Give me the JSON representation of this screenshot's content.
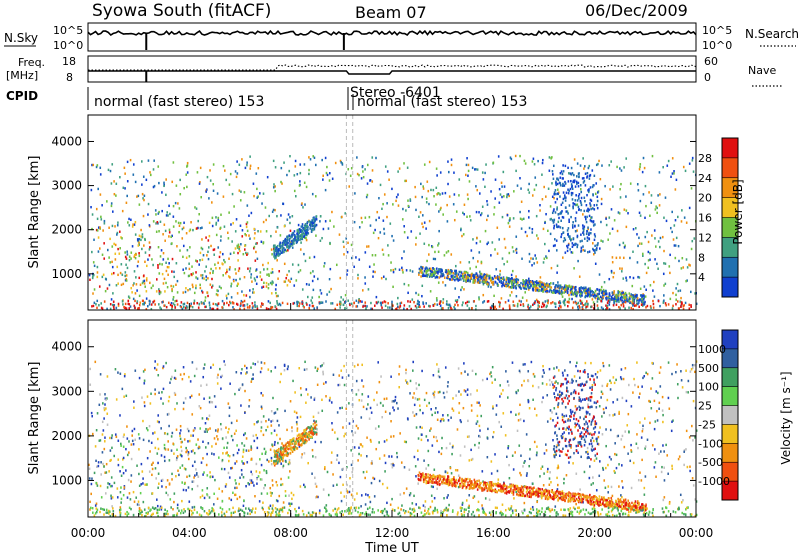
{
  "header": {
    "station": "Syowa South (fitACF)",
    "beam": "Beam 07",
    "date": "06/Dec/2009"
  },
  "top_panels": {
    "nsky_label": "N.Sky",
    "nsky_ticks": [
      "10^5",
      "10^0"
    ],
    "nsearch_label": "N.Search",
    "freq_label_1": "Freq.",
    "freq_label_2": "[MHz]",
    "freq_ticks": [
      "18",
      "8"
    ],
    "nave_ticks": [
      "60",
      "0"
    ],
    "nave_label": "Nave",
    "cpid_label": "CPID",
    "cpid_segments": [
      {
        "label": "normal (fast stereo) 153",
        "start_hour": 0
      },
      {
        "label": "Stereo -6401",
        "start_hour": 10.25
      },
      {
        "label": "normal (fast stereo) 153",
        "start_hour": 10.25
      }
    ]
  },
  "power_colorbar": {
    "label": "Power [dB]",
    "ticks": [
      "28",
      "24",
      "20",
      "16",
      "12",
      "8",
      "4"
    ],
    "colors": [
      "#e01010",
      "#f05010",
      "#f09010",
      "#f0c020",
      "#70c040",
      "#40a080",
      "#2070b0",
      "#1040d0"
    ]
  },
  "velocity_colorbar": {
    "label": "Velocity  [m s⁻¹]",
    "ticks": [
      "1000",
      "500",
      "100",
      "25",
      "-25",
      "-100",
      "-500",
      "-1000"
    ],
    "colors": [
      "#2040c0",
      "#3060a0",
      "#40a060",
      "#60d050",
      "#c0c0c0",
      "#f0c020",
      "#f09010",
      "#f05010",
      "#e01010"
    ]
  },
  "chart_data": [
    {
      "type": "heatmap",
      "title": "Power",
      "ylabel": "Slant Range [km]",
      "xlabel": "",
      "xlim": [
        0,
        24
      ],
      "ylim": [
        180,
        4600
      ],
      "yticks": [
        "1000",
        "2000",
        "3000",
        "4000"
      ]
    },
    {
      "type": "heatmap",
      "title": "Velocity",
      "ylabel": "Slant Range [km]",
      "xlabel": "Time UT",
      "xlim": [
        0,
        24
      ],
      "ylim": [
        180,
        4600
      ],
      "yticks": [
        "1000",
        "2000",
        "3000",
        "4000"
      ],
      "xticks": [
        "00:00",
        "04:00",
        "08:00",
        "12:00",
        "16:00",
        "20:00",
        "00:00"
      ]
    }
  ]
}
